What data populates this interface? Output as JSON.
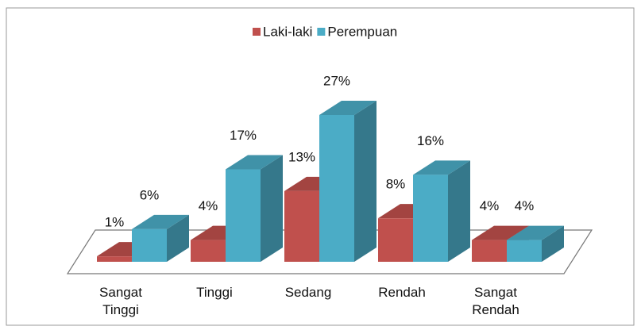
{
  "chart_data": {
    "type": "bar",
    "categories": [
      "Sangat Tinggi",
      "Tinggi",
      "Sedang",
      "Rendah",
      "Sangat Rendah"
    ],
    "series": [
      {
        "name": "Laki-laki",
        "color": "#c0504d",
        "values": [
          1,
          4,
          13,
          8,
          4
        ],
        "value_labels": [
          "1%",
          "4%",
          "13%",
          "8%",
          "4%"
        ]
      },
      {
        "name": "Perempuan",
        "color": "#4bacc6",
        "values": [
          6,
          17,
          27,
          16,
          4
        ],
        "value_labels": [
          "6%",
          "17%",
          "27%",
          "16%",
          "4%"
        ]
      }
    ],
    "legend": "top"
  }
}
